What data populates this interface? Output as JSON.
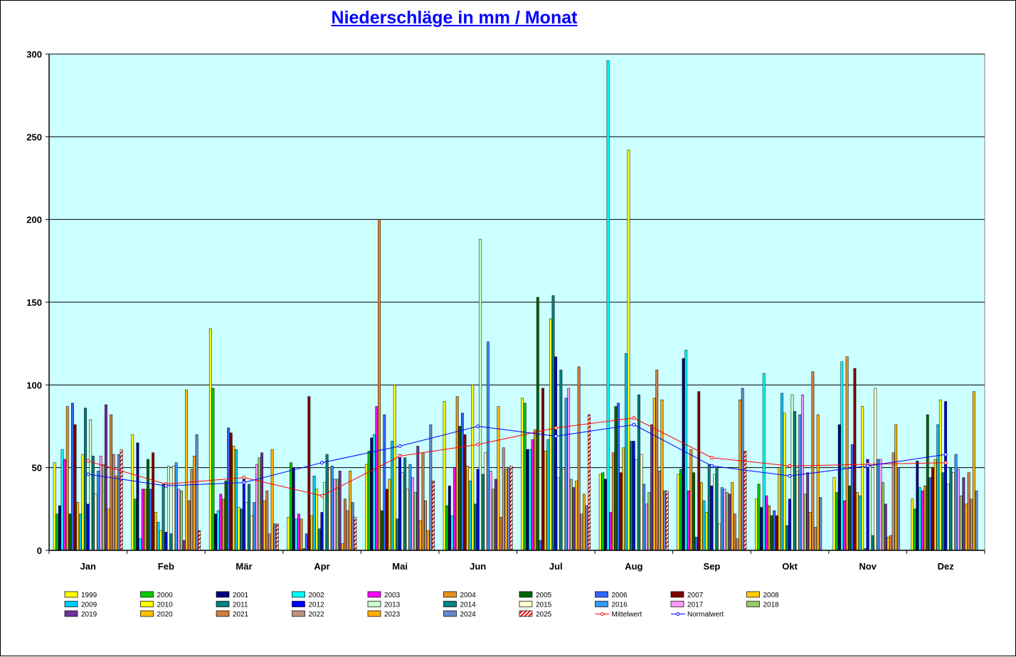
{
  "chart_data": {
    "type": "bar",
    "title": "Niederschläge in mm / Monat",
    "ylim": [
      0,
      300
    ],
    "yticks": [
      0,
      50,
      100,
      150,
      200,
      250,
      300
    ],
    "grid": true,
    "legend_placement": "bottom",
    "plot_background": "#ccffff",
    "categories": [
      "Jan",
      "Feb",
      "Mär",
      "Apr",
      "Mai",
      "Jun",
      "Jul",
      "Aug",
      "Sep",
      "Okt",
      "Nov",
      "Dez"
    ],
    "series": [
      {
        "name": "1999",
        "color": "#ffff00",
        "values": [
          53,
          70,
          134,
          20,
          52,
          90,
          92,
          46,
          46,
          31,
          44,
          31
        ]
      },
      {
        "name": "2000",
        "color": "#00cc00",
        "values": [
          22,
          31,
          98,
          53,
          60,
          27,
          89,
          47,
          49,
          40,
          35,
          25
        ]
      },
      {
        "name": "2001",
        "color": "#000080",
        "values": [
          27,
          65,
          22,
          50,
          68,
          39,
          61,
          43,
          116,
          26,
          76,
          54
        ]
      },
      {
        "name": "2002",
        "color": "#00ffff",
        "values": [
          61,
          7,
          24,
          19,
          70,
          21,
          61,
          296,
          121,
          107,
          114,
          38
        ]
      },
      {
        "name": "2003",
        "color": "#ff00ff",
        "values": [
          55,
          37,
          34,
          22,
          87,
          50,
          67,
          23,
          36,
          33,
          30,
          36
        ]
      },
      {
        "name": "2004",
        "color": "#e69020",
        "values": [
          87,
          37,
          31,
          19,
          200,
          93,
          73,
          59,
          61,
          27,
          117,
          39
        ]
      },
      {
        "name": "2005",
        "color": "#006600",
        "values": [
          22,
          55,
          42,
          1,
          24,
          75,
          153,
          87,
          47,
          21,
          39,
          82
        ]
      },
      {
        "name": "2006",
        "color": "#3366ff",
        "values": [
          89,
          37,
          74,
          10,
          82,
          83,
          6,
          89,
          8,
          24,
          64,
          44
        ]
      },
      {
        "name": "2007",
        "color": "#800000",
        "values": [
          76,
          59,
          71,
          93,
          37,
          70,
          98,
          47,
          96,
          21,
          110,
          50
        ]
      },
      {
        "name": "2008",
        "color": "#ffcc00",
        "values": [
          29,
          23,
          63,
          21,
          43,
          51,
          60,
          62,
          41,
          50,
          35,
          55
        ]
      },
      {
        "name": "2009",
        "color": "#00ccff",
        "values": [
          22,
          17,
          61,
          45,
          66,
          42,
          67,
          119,
          30,
          95,
          33,
          76
        ]
      },
      {
        "name": "2010",
        "color": "#ffff00",
        "values": [
          58,
          12,
          26,
          37,
          100,
          100,
          140,
          242,
          23,
          83,
          87,
          91
        ]
      },
      {
        "name": "2011",
        "color": "#008080",
        "values": [
          86,
          40,
          25,
          13,
          19,
          28,
          154,
          66,
          52,
          15,
          1,
          47
        ]
      },
      {
        "name": "2012",
        "color": "#0000ff",
        "values": [
          28,
          11,
          44,
          23,
          58,
          49,
          117,
          66,
          39,
          31,
          55,
          90
        ]
      },
      {
        "name": "2013",
        "color": "#ccffcc",
        "values": [
          79,
          51,
          29,
          41,
          47,
          188,
          44,
          55,
          46,
          94,
          51,
          40
        ]
      },
      {
        "name": "2014",
        "color": "#008080",
        "values": [
          57,
          10,
          40,
          58,
          56,
          46,
          109,
          94,
          50,
          84,
          9,
          50
        ]
      },
      {
        "name": "2015",
        "color": "#ffffcc",
        "values": [
          34,
          51,
          21,
          49,
          37,
          59,
          49,
          58,
          16,
          48,
          98,
          47
        ]
      },
      {
        "name": "2016",
        "color": "#3399ff",
        "values": [
          48,
          53,
          29,
          51,
          52,
          126,
          92,
          40,
          38,
          82,
          55,
          58
        ]
      },
      {
        "name": "2017",
        "color": "#ff99ff",
        "values": [
          57,
          37,
          52,
          43,
          44,
          48,
          98,
          28,
          37,
          94,
          55,
          49
        ]
      },
      {
        "name": "2018",
        "color": "#99cc66",
        "values": [
          52,
          36,
          56,
          43,
          35,
          37,
          43,
          35,
          35,
          34,
          41,
          33
        ]
      },
      {
        "name": "2019",
        "color": "#7030a0",
        "values": [
          88,
          6,
          59,
          48,
          63,
          43,
          38,
          76,
          34,
          47,
          28,
          44
        ]
      },
      {
        "name": "2020",
        "color": "#ffc000",
        "values": [
          25,
          97,
          30,
          4,
          18,
          87,
          42,
          92,
          41,
          23,
          8,
          28
        ]
      },
      {
        "name": "2021",
        "color": "#d08040",
        "values": [
          82,
          30,
          36,
          31,
          59,
          20,
          111,
          109,
          22,
          108,
          9,
          47
        ]
      },
      {
        "name": "2022",
        "color": "#c09080",
        "values": [
          58,
          49,
          10,
          24,
          30,
          62,
          22,
          48,
          7,
          14,
          59,
          31
        ]
      },
      {
        "name": "2023",
        "color": "#ffb000",
        "values": [
          45,
          57,
          61,
          48,
          12,
          49,
          34,
          91,
          91,
          82,
          76,
          96
        ]
      },
      {
        "name": "2024",
        "color": "#6688cc",
        "values": [
          58,
          70,
          16,
          29,
          76,
          50,
          27,
          36,
          98,
          32,
          50,
          36
        ]
      },
      {
        "name": "2025",
        "color": "#ff4040",
        "values": [
          61,
          12,
          16,
          20,
          42,
          51,
          82,
          36,
          60,
          null,
          null,
          null
        ]
      }
    ],
    "lines": [
      {
        "name": "Mittelwert",
        "color": "#ff0000",
        "values": [
          54,
          40,
          44,
          33,
          57,
          64,
          74,
          80,
          56,
          51,
          52,
          53
        ]
      },
      {
        "name": "Normalwert",
        "color": "#0000ff",
        "values": [
          46,
          39,
          41,
          53,
          63,
          75,
          69,
          76,
          51,
          45,
          51,
          58
        ]
      }
    ]
  }
}
